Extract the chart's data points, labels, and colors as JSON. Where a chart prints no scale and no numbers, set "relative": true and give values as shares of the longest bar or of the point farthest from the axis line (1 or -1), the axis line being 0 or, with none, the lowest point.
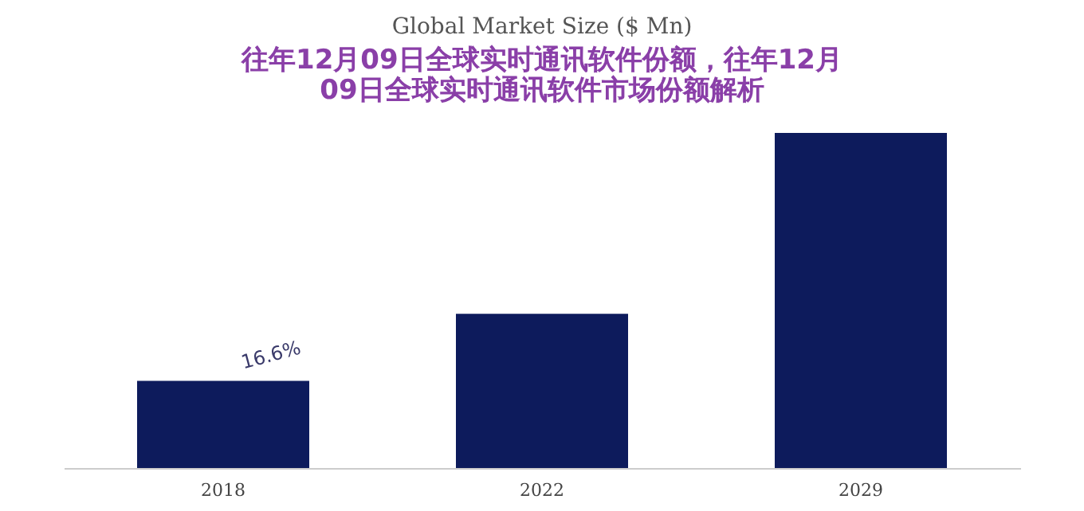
{
  "chart_data": {
    "type": "bar",
    "title": "Global Market Size ($ Mn)",
    "subtitle": "往年12月09日全球实时通讯软件份额，往年12月09日全球实时通讯软件市场份额解析",
    "categories": [
      "2018",
      "2022",
      "2029"
    ],
    "values": [
      0.26,
      0.46,
      1
    ],
    "color": "#0d1b5c",
    "relative": true,
    "annotations": [
      "16.6%"
    ]
  }
}
